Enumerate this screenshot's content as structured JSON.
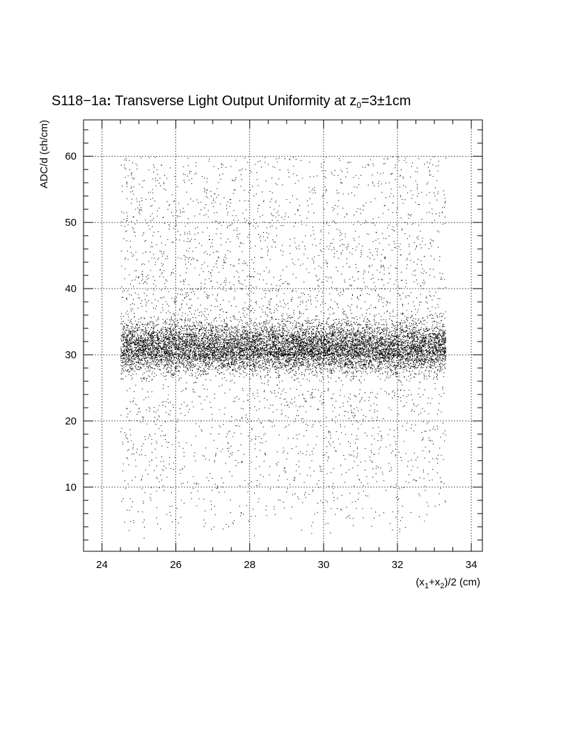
{
  "chart_data": {
    "type": "scatter",
    "title": {
      "main": "S118−1a",
      "colon": ":",
      "rest": " Transverse Light Output Uniformity at z",
      "sub": "0",
      "tail": "=3±1cm"
    },
    "xlabel": {
      "p1": "(x",
      "s1": "1",
      "p2": "+x",
      "s2": "2",
      "p3": ")/2 (cm)"
    },
    "ylabel": "ADC/d (ch/cm)",
    "xlim": [
      23.5,
      34.3
    ],
    "ylim": [
      0.3,
      65.5
    ],
    "xticks": [
      "24",
      "26",
      "28",
      "30",
      "32",
      "34"
    ],
    "yticks": [
      "10",
      "20",
      "30",
      "40",
      "50",
      "60"
    ],
    "grid": true,
    "description_stats": {
      "x_range": [
        24.5,
        33.3
      ],
      "band_center": 31,
      "band_spread": 3.5,
      "upper_sparse_range": [
        36,
        60
      ],
      "lower_sparse_range": [
        2,
        25
      ],
      "points_approx": 14000,
      "edge_upturn": true
    },
    "point_color": "#000000"
  }
}
